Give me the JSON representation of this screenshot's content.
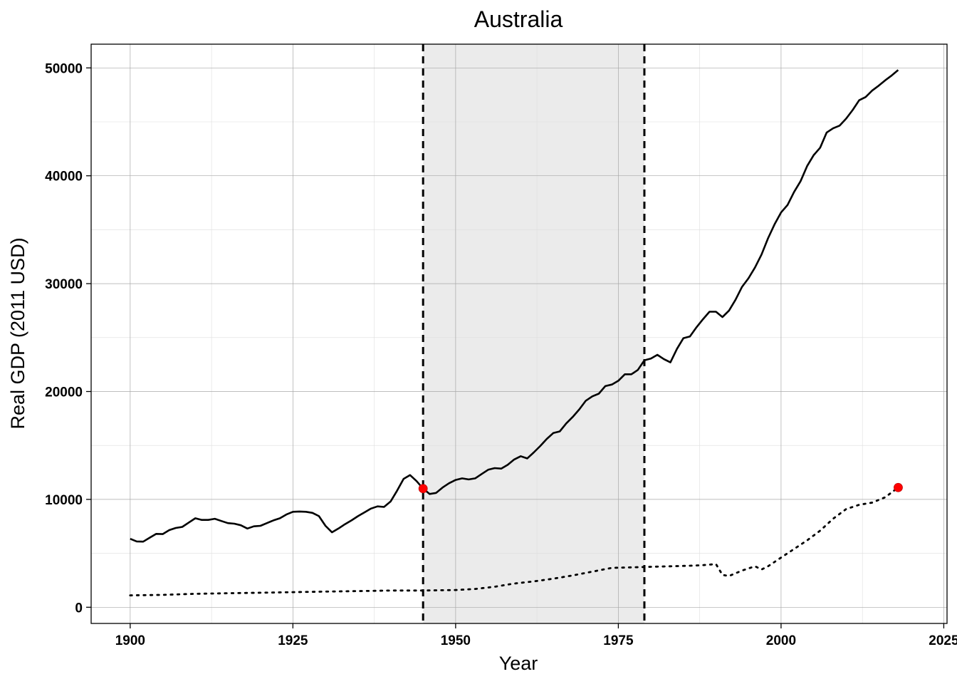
{
  "chart_data": {
    "type": "line",
    "title": "Australia",
    "xlabel": "Year",
    "ylabel": "Real GDP (2011 USD)",
    "xlim": [
      1894,
      2025.5
    ],
    "ylim": [
      -1500,
      52200
    ],
    "x_ticks": [
      1900,
      1925,
      1950,
      1975,
      2000,
      2025
    ],
    "x_tick_labels": [
      "1900",
      "1925",
      "1950",
      "1975",
      "2000",
      "2025"
    ],
    "y_ticks": [
      0,
      10000,
      20000,
      30000,
      40000,
      50000
    ],
    "y_tick_labels": [
      "0",
      "10000",
      "20000",
      "30000",
      "40000",
      "50000"
    ],
    "grid": true,
    "shaded_region": {
      "x_start": 1945,
      "x_end": 1979,
      "color": "#ebebeb"
    },
    "vertical_lines": [
      {
        "x": 1945,
        "style": "dashed"
      },
      {
        "x": 1979,
        "style": "dashed"
      }
    ],
    "series": [
      {
        "style": "solid",
        "color": "#000000",
        "points": [
          [
            1900,
            6350
          ],
          [
            1901,
            6100
          ],
          [
            1902,
            6080
          ],
          [
            1903,
            6450
          ],
          [
            1904,
            6800
          ],
          [
            1905,
            6780
          ],
          [
            1906,
            7150
          ],
          [
            1907,
            7350
          ],
          [
            1908,
            7450
          ],
          [
            1909,
            7850
          ],
          [
            1910,
            8250
          ],
          [
            1911,
            8100
          ],
          [
            1912,
            8100
          ],
          [
            1913,
            8200
          ],
          [
            1914,
            8000
          ],
          [
            1915,
            7800
          ],
          [
            1916,
            7750
          ],
          [
            1917,
            7600
          ],
          [
            1918,
            7300
          ],
          [
            1919,
            7500
          ],
          [
            1920,
            7550
          ],
          [
            1921,
            7800
          ],
          [
            1922,
            8050
          ],
          [
            1923,
            8250
          ],
          [
            1924,
            8600
          ],
          [
            1925,
            8850
          ],
          [
            1926,
            8880
          ],
          [
            1927,
            8850
          ],
          [
            1928,
            8750
          ],
          [
            1929,
            8450
          ],
          [
            1930,
            7550
          ],
          [
            1931,
            6950
          ],
          [
            1932,
            7300
          ],
          [
            1933,
            7700
          ],
          [
            1934,
            8050
          ],
          [
            1935,
            8450
          ],
          [
            1936,
            8800
          ],
          [
            1937,
            9150
          ],
          [
            1938,
            9350
          ],
          [
            1939,
            9300
          ],
          [
            1940,
            9800
          ],
          [
            1941,
            10800
          ],
          [
            1942,
            11900
          ],
          [
            1943,
            12250
          ],
          [
            1944,
            11700
          ],
          [
            1945,
            11000
          ],
          [
            1946,
            10500
          ],
          [
            1947,
            10600
          ],
          [
            1948,
            11100
          ],
          [
            1949,
            11500
          ],
          [
            1950,
            11800
          ],
          [
            1951,
            11950
          ],
          [
            1952,
            11850
          ],
          [
            1953,
            11950
          ],
          [
            1954,
            12350
          ],
          [
            1955,
            12750
          ],
          [
            1956,
            12900
          ],
          [
            1957,
            12850
          ],
          [
            1958,
            13200
          ],
          [
            1959,
            13700
          ],
          [
            1960,
            14000
          ],
          [
            1961,
            13800
          ],
          [
            1962,
            14350
          ],
          [
            1963,
            14950
          ],
          [
            1964,
            15600
          ],
          [
            1965,
            16150
          ],
          [
            1966,
            16300
          ],
          [
            1967,
            17050
          ],
          [
            1968,
            17650
          ],
          [
            1969,
            18350
          ],
          [
            1970,
            19150
          ],
          [
            1971,
            19550
          ],
          [
            1972,
            19800
          ],
          [
            1973,
            20500
          ],
          [
            1974,
            20650
          ],
          [
            1975,
            21000
          ],
          [
            1976,
            21600
          ],
          [
            1977,
            21600
          ],
          [
            1978,
            22000
          ],
          [
            1979,
            22900
          ],
          [
            1980,
            23050
          ],
          [
            1981,
            23400
          ],
          [
            1982,
            23000
          ],
          [
            1983,
            22700
          ],
          [
            1984,
            23950
          ],
          [
            1985,
            24950
          ],
          [
            1986,
            25100
          ],
          [
            1987,
            25950
          ],
          [
            1988,
            26700
          ],
          [
            1989,
            27400
          ],
          [
            1990,
            27400
          ],
          [
            1991,
            26900
          ],
          [
            1992,
            27500
          ],
          [
            1993,
            28500
          ],
          [
            1994,
            29700
          ],
          [
            1995,
            30500
          ],
          [
            1996,
            31500
          ],
          [
            1997,
            32700
          ],
          [
            1998,
            34200
          ],
          [
            1999,
            35500
          ],
          [
            2000,
            36600
          ],
          [
            2001,
            37300
          ],
          [
            2002,
            38500
          ],
          [
            2003,
            39500
          ],
          [
            2004,
            40900
          ],
          [
            2005,
            41900
          ],
          [
            2006,
            42600
          ],
          [
            2007,
            44000
          ],
          [
            2008,
            44400
          ],
          [
            2009,
            44650
          ],
          [
            2010,
            45300
          ],
          [
            2011,
            46100
          ],
          [
            2012,
            47000
          ],
          [
            2013,
            47300
          ],
          [
            2014,
            47900
          ],
          [
            2015,
            48350
          ],
          [
            2016,
            48850
          ],
          [
            2017,
            49300
          ],
          [
            2018,
            49800
          ]
        ]
      },
      {
        "style": "dotted",
        "color": "#000000",
        "points": [
          [
            1900,
            1100
          ],
          [
            1905,
            1150
          ],
          [
            1910,
            1250
          ],
          [
            1915,
            1300
          ],
          [
            1920,
            1350
          ],
          [
            1925,
            1400
          ],
          [
            1930,
            1450
          ],
          [
            1935,
            1500
          ],
          [
            1940,
            1550
          ],
          [
            1945,
            1550
          ],
          [
            1950,
            1600
          ],
          [
            1953,
            1700
          ],
          [
            1956,
            1900
          ],
          [
            1959,
            2200
          ],
          [
            1962,
            2400
          ],
          [
            1965,
            2650
          ],
          [
            1968,
            2950
          ],
          [
            1971,
            3300
          ],
          [
            1974,
            3650
          ],
          [
            1977,
            3700
          ],
          [
            1980,
            3750
          ],
          [
            1983,
            3800
          ],
          [
            1986,
            3850
          ],
          [
            1988,
            3900
          ],
          [
            1990,
            4000
          ],
          [
            1991,
            3000
          ],
          [
            1992,
            2900
          ],
          [
            1994,
            3400
          ],
          [
            1996,
            3800
          ],
          [
            1997,
            3500
          ],
          [
            1998,
            3800
          ],
          [
            2000,
            4600
          ],
          [
            2002,
            5400
          ],
          [
            2004,
            6200
          ],
          [
            2006,
            7100
          ],
          [
            2008,
            8200
          ],
          [
            2010,
            9100
          ],
          [
            2012,
            9500
          ],
          [
            2014,
            9700
          ],
          [
            2016,
            10200
          ],
          [
            2018,
            11100
          ]
        ]
      }
    ],
    "highlight_points": [
      {
        "x": 1945,
        "y": 11000,
        "color": "#ff0000"
      },
      {
        "x": 2018,
        "y": 11100,
        "color": "#ff0000"
      }
    ]
  }
}
